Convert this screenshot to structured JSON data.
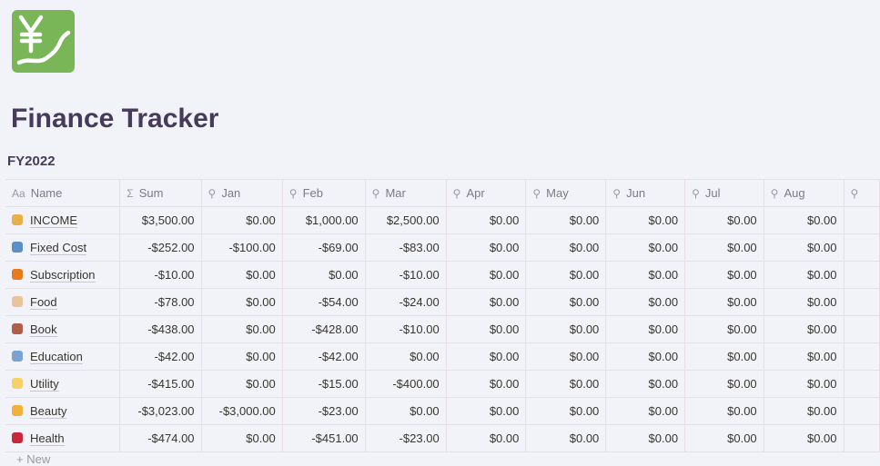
{
  "page": {
    "title": "Finance Tracker",
    "view_title": "FY2022",
    "icon": "yen-chart-icon"
  },
  "table": {
    "columns": [
      {
        "label": "Name",
        "icon": "text-icon"
      },
      {
        "label": "Sum",
        "icon": "sigma-icon"
      },
      {
        "label": "Jan",
        "icon": "search-icon"
      },
      {
        "label": "Feb",
        "icon": "search-icon"
      },
      {
        "label": "Mar",
        "icon": "search-icon"
      },
      {
        "label": "Apr",
        "icon": "search-icon"
      },
      {
        "label": "May",
        "icon": "search-icon"
      },
      {
        "label": "Jun",
        "icon": "search-icon"
      },
      {
        "label": "Jul",
        "icon": "search-icon"
      },
      {
        "label": "Aug",
        "icon": "search-icon"
      }
    ],
    "rows": [
      {
        "name": "INCOME",
        "emoji_color": "#e8b04a",
        "values": [
          "$3,500.00",
          "$0.00",
          "$1,000.00",
          "$2,500.00",
          "$0.00",
          "$0.00",
          "$0.00",
          "$0.00",
          "$0.00"
        ]
      },
      {
        "name": "Fixed Cost",
        "emoji_color": "#5b8fc7",
        "values": [
          "-$252.00",
          "-$100.00",
          "-$69.00",
          "-$83.00",
          "$0.00",
          "$0.00",
          "$0.00",
          "$0.00",
          "$0.00"
        ]
      },
      {
        "name": "Subscription",
        "emoji_color": "#e87a1e",
        "values": [
          "-$10.00",
          "$0.00",
          "$0.00",
          "-$10.00",
          "$0.00",
          "$0.00",
          "$0.00",
          "$0.00",
          "$0.00"
        ]
      },
      {
        "name": "Food",
        "emoji_color": "#e9c49a",
        "values": [
          "-$78.00",
          "$0.00",
          "-$54.00",
          "-$24.00",
          "$0.00",
          "$0.00",
          "$0.00",
          "$0.00",
          "$0.00"
        ]
      },
      {
        "name": "Book",
        "emoji_color": "#b05d4a",
        "values": [
          "-$438.00",
          "$0.00",
          "-$428.00",
          "-$10.00",
          "$0.00",
          "$0.00",
          "$0.00",
          "$0.00",
          "$0.00"
        ]
      },
      {
        "name": "Education",
        "emoji_color": "#7aa3cf",
        "values": [
          "-$42.00",
          "$0.00",
          "-$42.00",
          "$0.00",
          "$0.00",
          "$0.00",
          "$0.00",
          "$0.00",
          "$0.00"
        ]
      },
      {
        "name": "Utility",
        "emoji_color": "#f5d36a",
        "values": [
          "-$415.00",
          "$0.00",
          "-$15.00",
          "-$400.00",
          "$0.00",
          "$0.00",
          "$0.00",
          "$0.00",
          "$0.00"
        ]
      },
      {
        "name": "Beauty",
        "emoji_color": "#f0b23c",
        "values": [
          "-$3,023.00",
          "-$3,000.00",
          "-$23.00",
          "$0.00",
          "$0.00",
          "$0.00",
          "$0.00",
          "$0.00",
          "$0.00"
        ]
      },
      {
        "name": "Health",
        "emoji_color": "#c8283a",
        "values": [
          "-$474.00",
          "$0.00",
          "-$451.00",
          "-$23.00",
          "$0.00",
          "$0.00",
          "$0.00",
          "$0.00",
          "$0.00"
        ]
      }
    ],
    "new_label": "+ New"
  }
}
